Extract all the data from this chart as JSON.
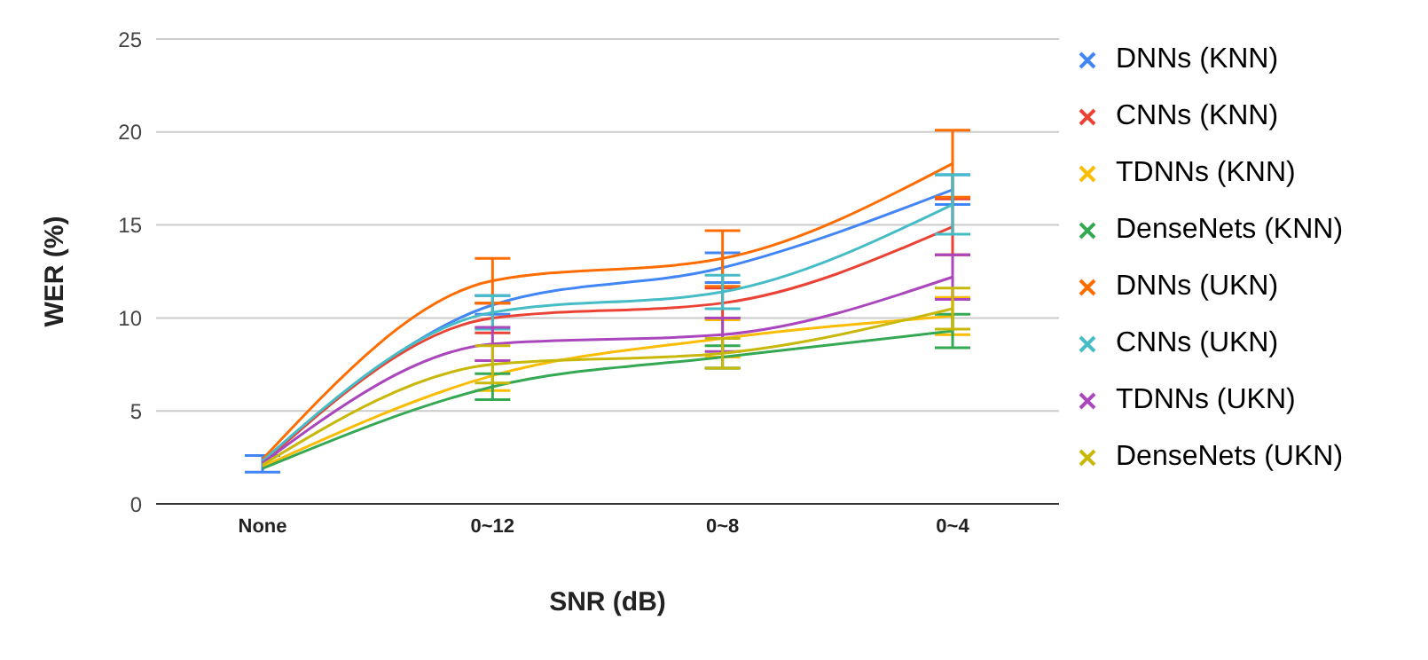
{
  "chart_data": {
    "type": "line",
    "xlabel": "SNR (dB)",
    "ylabel": "WER (%)",
    "categories": [
      "None",
      "0~12",
      "0~8",
      "0~4"
    ],
    "ylim": [
      0,
      25
    ],
    "yticks": [
      0,
      5,
      10,
      15,
      20,
      25
    ],
    "grid": "y",
    "legend": "right",
    "marker": "none",
    "line_style": "solid",
    "series": [
      {
        "name": "DNNs (KNN)",
        "color": "#4285f4",
        "values": [
          2.3,
          10.7,
          12.7,
          16.9
        ],
        "errors": [
          [
            1.7,
            2.6
          ],
          0.5,
          0.8,
          0.8
        ]
      },
      {
        "name": "CNNs (KNN)",
        "color": "#ea4335",
        "values": [
          2.2,
          10.0,
          10.8,
          14.9
        ],
        "errors": [
          null,
          0.8,
          0.8,
          1.5
        ]
      },
      {
        "name": "TDNNs (KNN)",
        "color": "#fbbc04",
        "values": [
          2.0,
          6.9,
          8.9,
          10.1
        ],
        "errors": [
          null,
          0.8,
          1.0,
          1.0
        ]
      },
      {
        "name": "DenseNets (KNN)",
        "color": "#34a853",
        "values": [
          1.9,
          6.3,
          7.9,
          9.3
        ],
        "errors": [
          null,
          0.7,
          0.6,
          0.9
        ]
      },
      {
        "name": "DNNs (UKN)",
        "color": "#ff6d01",
        "values": [
          2.4,
          12.0,
          13.2,
          18.3
        ],
        "errors": [
          null,
          1.2,
          1.5,
          1.8
        ]
      },
      {
        "name": "CNNs (UKN)",
        "color": "#46bdc6",
        "values": [
          2.3,
          10.3,
          11.4,
          16.1
        ],
        "errors": [
          null,
          0.9,
          0.9,
          1.6
        ]
      },
      {
        "name": "TDNNs (UKN)",
        "color": "#ab47bc",
        "values": [
          2.2,
          8.6,
          9.1,
          12.2
        ],
        "errors": [
          null,
          0.9,
          0.9,
          1.2
        ]
      },
      {
        "name": "DenseNets (UKN)",
        "color": "#c9b80c",
        "values": [
          2.1,
          7.5,
          8.1,
          10.5
        ],
        "errors": [
          null,
          1.0,
          0.8,
          1.1
        ]
      }
    ]
  }
}
